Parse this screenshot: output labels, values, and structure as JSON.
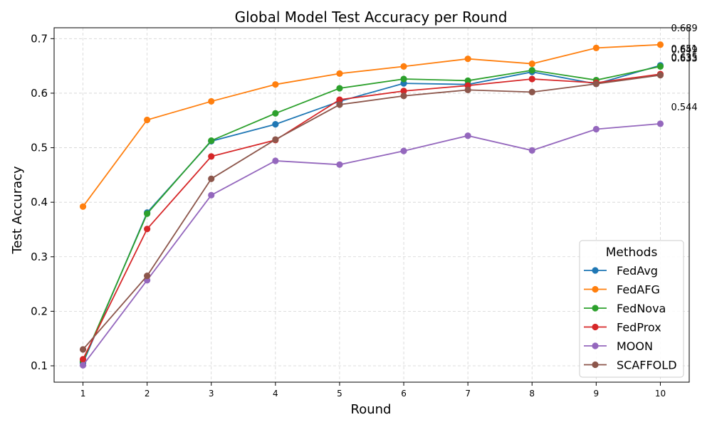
{
  "chart_data": {
    "type": "line",
    "title": "Global Model Test Accuracy per Round",
    "xlabel": "Round",
    "ylabel": "Test Accuracy",
    "x": [
      1,
      2,
      3,
      4,
      5,
      6,
      7,
      8,
      9,
      10
    ],
    "xlim": [
      0.55,
      10.45
    ],
    "ylim": [
      0.07,
      0.72
    ],
    "yticks": [
      0.1,
      0.2,
      0.3,
      0.4,
      0.5,
      0.6,
      0.7
    ],
    "ytick_labels": [
      "0.1",
      "0.2",
      "0.3",
      "0.4",
      "0.5",
      "0.6",
      "0.7"
    ],
    "xtick_labels": [
      "1",
      "2",
      "3",
      "4",
      "5",
      "6",
      "7",
      "8",
      "9",
      "10"
    ],
    "grid": true,
    "legend": {
      "title": "Methods",
      "placement": "lower-right"
    },
    "series": [
      {
        "name": "FedAvg",
        "color": "#1f77b4",
        "values": [
          0.105,
          0.381,
          0.512,
          0.543,
          0.585,
          0.618,
          0.616,
          0.639,
          0.617,
          0.651
        ],
        "end_label": "0.651"
      },
      {
        "name": "FedAFG",
        "color": "#ff7f0e",
        "values": [
          0.392,
          0.551,
          0.585,
          0.616,
          0.636,
          0.649,
          0.663,
          0.654,
          0.683,
          0.689
        ],
        "end_label": "0.689"
      },
      {
        "name": "FedNova",
        "color": "#2ca02c",
        "values": [
          0.108,
          0.379,
          0.513,
          0.563,
          0.609,
          0.626,
          0.623,
          0.642,
          0.624,
          0.649
        ],
        "end_label": "0.649"
      },
      {
        "name": "FedProx",
        "color": "#d62728",
        "values": [
          0.112,
          0.351,
          0.484,
          0.514,
          0.588,
          0.604,
          0.614,
          0.626,
          0.619,
          0.635
        ],
        "end_label": "0.635"
      },
      {
        "name": "MOON",
        "color": "#9467bd",
        "values": [
          0.101,
          0.257,
          0.413,
          0.476,
          0.469,
          0.494,
          0.522,
          0.495,
          0.534,
          0.544
        ],
        "end_label": "0.544"
      },
      {
        "name": "SCAFFOLD",
        "color": "#8c564b",
        "values": [
          0.13,
          0.265,
          0.443,
          0.515,
          0.579,
          0.595,
          0.606,
          0.602,
          0.617,
          0.633
        ],
        "end_label": "0.633"
      }
    ]
  }
}
